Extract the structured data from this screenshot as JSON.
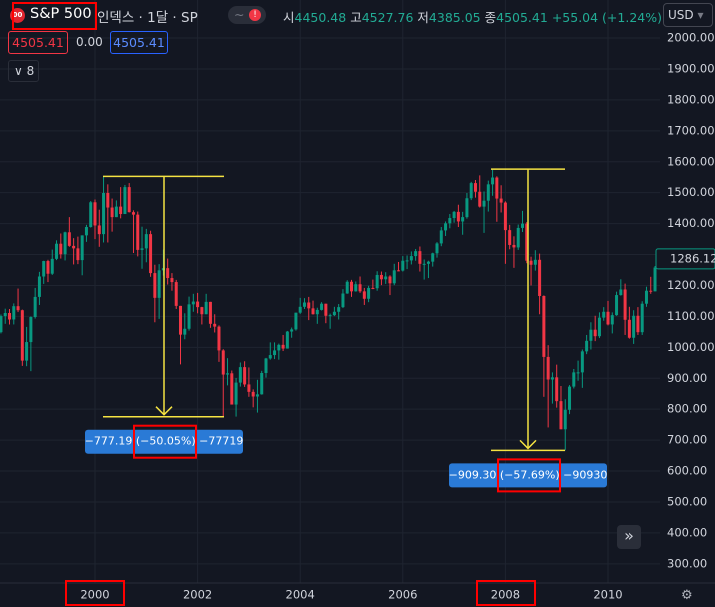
{
  "header": {
    "logo": "00",
    "symbol": "S&P 500",
    "descriptor": "인덱스 · 1달 · SP",
    "ohlc_labels": [
      "시",
      "고",
      "저",
      "종"
    ],
    "ohlc_values": [
      "4450.48",
      "4527.76",
      "4385.05",
      "4505.41"
    ],
    "change": "+55.04 (+1.24%)",
    "currency": "USD",
    "price": "4505.41",
    "zero": "0.00",
    "price2": "4505.41",
    "indicator_count": "8"
  },
  "chart_data": {
    "type": "candlestick",
    "up_color": "#089981",
    "down_color": "#f23645",
    "grid": true,
    "ylim": [
      238,
      2123
    ],
    "yticks": [
      {
        "value": 300,
        "label": "300.00"
      },
      {
        "value": 400,
        "label": "400.00"
      },
      {
        "value": 500,
        "label": "500.00"
      },
      {
        "value": 600,
        "label": "600.00"
      },
      {
        "value": 700,
        "label": "700.00"
      },
      {
        "value": 800,
        "label": "800.00"
      },
      {
        "value": 900,
        "label": "900.00"
      },
      {
        "value": 1000,
        "label": "1000.00"
      },
      {
        "value": 1100,
        "label": "1100.00"
      },
      {
        "value": 1200,
        "label": "1200.00"
      },
      {
        "value": 1300,
        "label": "1300.00"
      },
      {
        "value": 1400,
        "label": "1400.00"
      },
      {
        "value": 1500,
        "label": "1500.00"
      },
      {
        "value": 1600,
        "label": "1600.00"
      },
      {
        "value": 1700,
        "label": "1700.00"
      },
      {
        "value": 1800,
        "label": "1800.00"
      },
      {
        "value": 1900,
        "label": "1900.00"
      },
      {
        "value": 2000,
        "label": "2000.00"
      }
    ],
    "categories": [
      null,
      null,
      null,
      null,
      null,
      null,
      null,
      null,
      null,
      null,
      null,
      null,
      null,
      null,
      null,
      null,
      null,
      null,
      null,
      null,
      null,
      null,
      "2000",
      null,
      null,
      null,
      null,
      null,
      null,
      null,
      null,
      null,
      null,
      null,
      null,
      null,
      null,
      null,
      null,
      null,
      null,
      null,
      null,
      null,
      null,
      null,
      "2002",
      null,
      null,
      null,
      null,
      null,
      null,
      null,
      null,
      null,
      null,
      null,
      null,
      null,
      null,
      null,
      null,
      null,
      null,
      null,
      null,
      null,
      null,
      null,
      "2004",
      null,
      null,
      null,
      null,
      null,
      null,
      null,
      null,
      null,
      null,
      null,
      null,
      null,
      null,
      null,
      null,
      null,
      null,
      null,
      null,
      null,
      null,
      null,
      "2006",
      null,
      null,
      null,
      null,
      null,
      null,
      null,
      null,
      null,
      null,
      null,
      null,
      null,
      null,
      null,
      null,
      null,
      null,
      null,
      null,
      null,
      null,
      null,
      "2008",
      null,
      null,
      null,
      null,
      null,
      null,
      null,
      null,
      null,
      null,
      null,
      null,
      null,
      null,
      null,
      null,
      null,
      null,
      null,
      null,
      null,
      null,
      null,
      "2010",
      null,
      null,
      null,
      null,
      null,
      null,
      null,
      null,
      null,
      null,
      null,
      null
    ],
    "ohlc": [
      [
        1049,
        1106,
        1045,
        1101
      ],
      [
        1101,
        1125,
        1076,
        1111
      ],
      [
        1111,
        1124,
        1074,
        1090
      ],
      [
        1090,
        1142,
        1074,
        1133
      ],
      [
        1133,
        1190,
        1114,
        1120
      ],
      [
        1120,
        1122,
        940,
        957
      ],
      [
        957,
        1066,
        939,
        1017
      ],
      [
        1017,
        1100,
        923,
        1098
      ],
      [
        1098,
        1192,
        1093,
        1163
      ],
      [
        1163,
        1244,
        1137,
        1229
      ],
      [
        1229,
        1280,
        1205,
        1279
      ],
      [
        1279,
        1283,
        1211,
        1238
      ],
      [
        1238,
        1316,
        1234,
        1286
      ],
      [
        1286,
        1346,
        1282,
        1335
      ],
      [
        1335,
        1368,
        1287,
        1301
      ],
      [
        1301,
        1374,
        1281,
        1372
      ],
      [
        1372,
        1421,
        1325,
        1328
      ],
      [
        1328,
        1353,
        1268,
        1320
      ],
      [
        1320,
        1358,
        1269,
        1282
      ],
      [
        1282,
        1362,
        1233,
        1362
      ],
      [
        1362,
        1396,
        1341,
        1389
      ],
      [
        1389,
        1473,
        1387,
        1469
      ],
      [
        1469,
        1478,
        1350,
        1394
      ],
      [
        1394,
        1445,
        1325,
        1366
      ],
      [
        1366,
        1553,
        1339,
        1499
      ],
      [
        1499,
        1527,
        1339,
        1452
      ],
      [
        1452,
        1481,
        1374,
        1421
      ],
      [
        1421,
        1475,
        1421,
        1455
      ],
      [
        1455,
        1518,
        1417,
        1431
      ],
      [
        1431,
        1525,
        1431,
        1518
      ],
      [
        1518,
        1531,
        1436,
        1437
      ],
      [
        1437,
        1443,
        1305,
        1429
      ],
      [
        1429,
        1439,
        1294,
        1315
      ],
      [
        1315,
        1390,
        1254,
        1320
      ],
      [
        1320,
        1383,
        1275,
        1366
      ],
      [
        1366,
        1377,
        1228,
        1240
      ],
      [
        1240,
        1267,
        1081,
        1160
      ],
      [
        1160,
        1269,
        1092,
        1249
      ],
      [
        1249,
        1316,
        1232,
        1256
      ],
      [
        1256,
        1287,
        1203,
        1224
      ],
      [
        1224,
        1240,
        1183,
        1211
      ],
      [
        1211,
        1218,
        1124,
        1134
      ],
      [
        1134,
        1134,
        945,
        1041
      ],
      [
        1041,
        1110,
        1026,
        1060
      ],
      [
        1060,
        1164,
        1054,
        1139
      ],
      [
        1139,
        1173,
        1115,
        1148
      ],
      [
        1148,
        1176,
        1110,
        1130
      ],
      [
        1130,
        1131,
        1074,
        1107
      ],
      [
        1107,
        1173,
        1107,
        1147
      ],
      [
        1147,
        1147,
        1063,
        1076
      ],
      [
        1076,
        1107,
        1048,
        1067
      ],
      [
        1067,
        1071,
        953,
        990
      ],
      [
        990,
        994,
        776,
        912
      ],
      [
        912,
        965,
        877,
        916
      ],
      [
        916,
        925,
        815,
        815
      ],
      [
        815,
        901,
        776,
        886
      ],
      [
        886,
        951,
        873,
        936
      ],
      [
        936,
        955,
        872,
        880
      ],
      [
        880,
        935,
        840,
        856
      ],
      [
        856,
        864,
        806,
        841
      ],
      [
        841,
        895,
        789,
        848
      ],
      [
        848,
        924,
        847,
        917
      ],
      [
        917,
        966,
        902,
        964
      ],
      [
        964,
        1016,
        960,
        975
      ],
      [
        975,
        1016,
        962,
        990
      ],
      [
        990,
        1012,
        960,
        1008
      ],
      [
        1008,
        1040,
        988,
        996
      ],
      [
        996,
        1053,
        996,
        1051
      ],
      [
        1051,
        1064,
        1031,
        1058
      ],
      [
        1058,
        1112,
        1054,
        1112
      ],
      [
        1112,
        1160,
        1108,
        1131
      ],
      [
        1131,
        1159,
        1124,
        1145
      ],
      [
        1145,
        1163,
        1088,
        1126
      ],
      [
        1126,
        1151,
        1106,
        1107
      ],
      [
        1107,
        1128,
        1076,
        1121
      ],
      [
        1121,
        1146,
        1119,
        1141
      ],
      [
        1141,
        1141,
        1078,
        1102
      ],
      [
        1102,
        1109,
        1060,
        1104
      ],
      [
        1104,
        1131,
        1101,
        1115
      ],
      [
        1115,
        1140,
        1090,
        1130
      ],
      [
        1130,
        1188,
        1127,
        1174
      ],
      [
        1174,
        1217,
        1173,
        1212
      ],
      [
        1212,
        1218,
        1163,
        1181
      ],
      [
        1181,
        1213,
        1180,
        1204
      ],
      [
        1204,
        1229,
        1176,
        1181
      ],
      [
        1181,
        1192,
        1137,
        1157
      ],
      [
        1157,
        1199,
        1146,
        1192
      ],
      [
        1192,
        1219,
        1188,
        1191
      ],
      [
        1191,
        1246,
        1183,
        1234
      ],
      [
        1234,
        1245,
        1201,
        1220
      ],
      [
        1220,
        1243,
        1205,
        1229
      ],
      [
        1229,
        1233,
        1169,
        1207
      ],
      [
        1207,
        1270,
        1201,
        1249
      ],
      [
        1249,
        1276,
        1246,
        1248
      ],
      [
        1248,
        1295,
        1245,
        1280
      ],
      [
        1280,
        1297,
        1253,
        1281
      ],
      [
        1281,
        1310,
        1268,
        1295
      ],
      [
        1295,
        1318,
        1280,
        1311
      ],
      [
        1311,
        1326,
        1245,
        1270
      ],
      [
        1270,
        1284,
        1219,
        1270
      ],
      [
        1270,
        1280,
        1224,
        1277
      ],
      [
        1277,
        1306,
        1261,
        1304
      ],
      [
        1304,
        1340,
        1290,
        1336
      ],
      [
        1336,
        1389,
        1327,
        1378
      ],
      [
        1378,
        1407,
        1360,
        1401
      ],
      [
        1401,
        1431,
        1385,
        1418
      ],
      [
        1418,
        1441,
        1403,
        1438
      ],
      [
        1438,
        1461,
        1389,
        1407
      ],
      [
        1407,
        1438,
        1364,
        1421
      ],
      [
        1421,
        1499,
        1416,
        1482
      ],
      [
        1482,
        1535,
        1476,
        1531
      ],
      [
        1531,
        1541,
        1484,
        1503
      ],
      [
        1503,
        1556,
        1452,
        1455
      ],
      [
        1455,
        1504,
        1370,
        1474
      ],
      [
        1474,
        1539,
        1439,
        1527
      ],
      [
        1527,
        1576,
        1490,
        1549
      ],
      [
        1549,
        1553,
        1406,
        1481
      ],
      [
        1481,
        1524,
        1436,
        1468
      ],
      [
        1468,
        1472,
        1270,
        1379
      ],
      [
        1379,
        1396,
        1317,
        1331
      ],
      [
        1331,
        1359,
        1257,
        1323
      ],
      [
        1323,
        1397,
        1315,
        1386
      ],
      [
        1386,
        1441,
        1373,
        1400
      ],
      [
        1400,
        1405,
        1272,
        1280
      ],
      [
        1280,
        1293,
        1200,
        1267
      ],
      [
        1267,
        1314,
        1248,
        1283
      ],
      [
        1283,
        1303,
        1107,
        1166
      ],
      [
        1166,
        1168,
        840,
        969
      ],
      [
        969,
        1007,
        741,
        896
      ],
      [
        896,
        919,
        818,
        903
      ],
      [
        903,
        944,
        805,
        826
      ],
      [
        826,
        875,
        735,
        735
      ],
      [
        735,
        832,
        667,
        798
      ],
      [
        798,
        878,
        784,
        873
      ],
      [
        873,
        930,
        867,
        919
      ],
      [
        919,
        957,
        892,
        919
      ],
      [
        919,
        993,
        869,
        987
      ],
      [
        987,
        1040,
        978,
        1021
      ],
      [
        1021,
        1081,
        993,
        1057
      ],
      [
        1057,
        1102,
        1020,
        1036
      ],
      [
        1036,
        1113,
        1030,
        1096
      ],
      [
        1096,
        1130,
        1086,
        1115
      ],
      [
        1115,
        1150,
        1071,
        1074
      ],
      [
        1074,
        1113,
        1045,
        1104
      ],
      [
        1104,
        1180,
        1102,
        1169
      ],
      [
        1169,
        1220,
        1167,
        1187
      ],
      [
        1187,
        1206,
        1040,
        1089
      ],
      [
        1089,
        1131,
        1028,
        1031
      ],
      [
        1031,
        1120,
        1011,
        1102
      ],
      [
        1102,
        1130,
        1040,
        1049
      ],
      [
        1049,
        1149,
        1040,
        1141
      ],
      [
        1141,
        1196,
        1131,
        1183
      ],
      [
        1183,
        1228,
        1173,
        1181
      ],
      [
        1181,
        1263,
        1181,
        1258
      ],
      [
        1258,
        1302,
        1257,
        1286.12
      ]
    ],
    "measurements": [
      {
        "start": 1552.87,
        "end": 775.68,
        "change": "−777.19",
        "percent": "(−50.05%)",
        "ticks": "−77719"
      },
      {
        "start": 1576.09,
        "end": 666.79,
        "change": "−909.30",
        "percent": "(−57.69%)",
        "ticks": "−90930"
      }
    ]
  }
}
